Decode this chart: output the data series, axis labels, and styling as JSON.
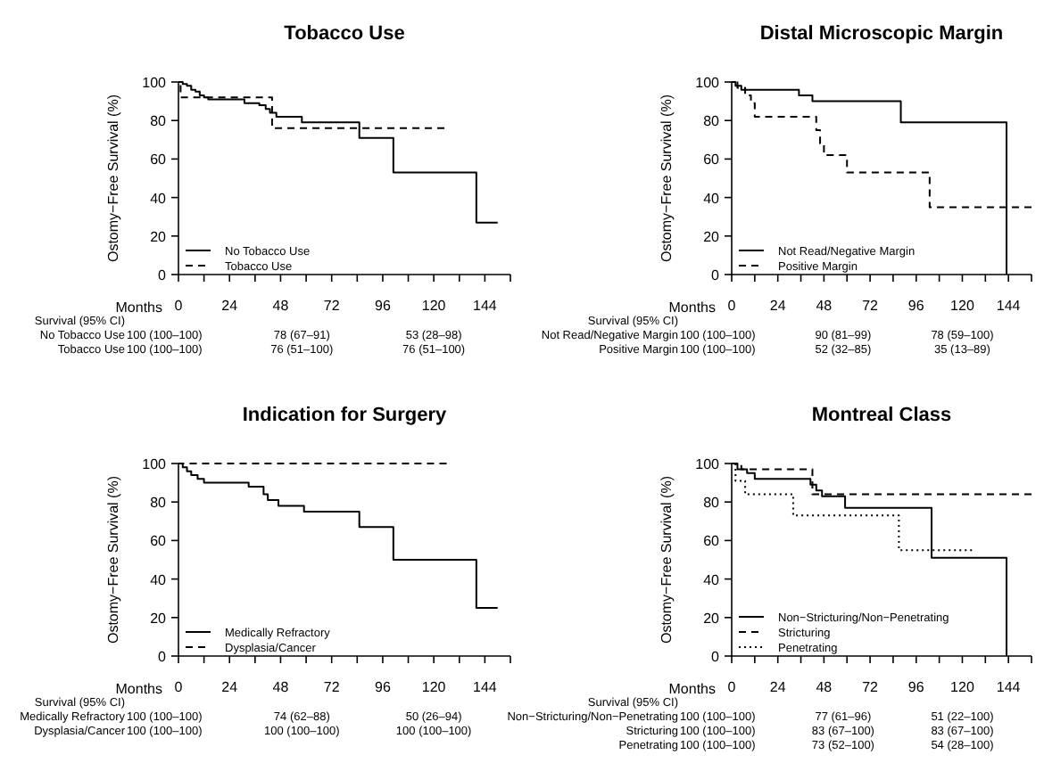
{
  "chart_data": [
    {
      "type": "step",
      "title": "Tobacco Use",
      "xlabel": "Months",
      "ylabel": "Ostomy−Free Survival (%)",
      "xlim": [
        0,
        156
      ],
      "xticks": [
        0,
        {
          "value": 12,
          "label": null
        },
        24,
        {
          "value": 36,
          "label": null
        },
        48,
        {
          "value": 60,
          "label": null
        },
        72,
        {
          "value": 84,
          "label": null
        },
        96,
        {
          "value": 108,
          "label": null
        },
        120,
        {
          "value": 132,
          "label": null
        },
        144,
        {
          "value": 156,
          "label": null
        }
      ],
      "ylim": [
        0,
        100
      ],
      "yticks": [
        0,
        20,
        40,
        60,
        80,
        100
      ],
      "legend": "bottom left",
      "series": [
        {
          "name": "No Tobacco Use",
          "color": "#000000",
          "line_style": "solid",
          "x": [
            0,
            2,
            4,
            6,
            8,
            10,
            12,
            14,
            31,
            38,
            41,
            43,
            46,
            58,
            85,
            101,
            140,
            150
          ],
          "values": [
            100,
            99,
            98,
            96,
            95,
            93,
            92,
            91,
            89,
            88,
            86,
            84,
            82,
            79,
            71,
            53,
            27,
            27
          ]
        },
        {
          "name": "Tobacco Use",
          "color": "#000000",
          "line_style": "dashed",
          "x": [
            0,
            1,
            44,
            125
          ],
          "values": [
            100,
            92,
            76,
            76
          ]
        }
      ],
      "annotations": [
        "Survival (95% CI)",
        "No Tobacco Use",
        "100 (100–100)",
        "78 (67–91)",
        "53 (28–98)",
        "Tobacco Use",
        "100 (100–100)",
        "76 (51–100)",
        "76 (51–100)"
      ]
    },
    {
      "type": "step",
      "title": "Distal Microscopic Margin",
      "xlabel": "Months",
      "ylabel": "Ostomy−Free Survival (%)",
      "xlim": [
        0,
        156
      ],
      "xticks": [
        0,
        {
          "value": 12,
          "label": null
        },
        24,
        {
          "value": 36,
          "label": null
        },
        48,
        {
          "value": 60,
          "label": null
        },
        72,
        {
          "value": 84,
          "label": null
        },
        96,
        {
          "value": 108,
          "label": null
        },
        120,
        {
          "value": 132,
          "label": null
        },
        144,
        {
          "value": 156,
          "label": null
        }
      ],
      "ylim": [
        0,
        100
      ],
      "yticks": [
        0,
        20,
        40,
        60,
        80,
        100
      ],
      "legend": "bottom left",
      "series": [
        {
          "name": "Not Read/Negative Margin",
          "color": "#000000",
          "line_style": "solid",
          "x": [
            0,
            2,
            5,
            35,
            42,
            88,
            143
          ],
          "values": [
            100,
            98,
            96,
            93,
            90,
            79,
            0
          ]
        },
        {
          "name": "Positive Margin",
          "color": "#000000",
          "line_style": "dashed",
          "x": [
            0,
            3,
            7,
            10,
            12,
            44,
            46,
            48,
            60,
            103,
            156
          ],
          "values": [
            100,
            97,
            93,
            89,
            82,
            75,
            68,
            62,
            53,
            35,
            35
          ]
        }
      ],
      "annotations": [
        "Survival (95% CI)",
        "Not Read/Negative Margin",
        "100 (100–100)",
        "90 (81–99)",
        "78 (59–100)",
        "Positive Margin",
        "100 (100–100)",
        "52 (32–85)",
        "35 (13–89)"
      ]
    },
    {
      "type": "step",
      "title": "Indication for Surgery",
      "xlabel": "Months",
      "ylabel": "Ostomy−Free Survival (%)",
      "xlim": [
        0,
        156
      ],
      "xticks": [
        0,
        {
          "value": 12,
          "label": null
        },
        24,
        {
          "value": 36,
          "label": null
        },
        48,
        {
          "value": 60,
          "label": null
        },
        72,
        {
          "value": 84,
          "label": null
        },
        96,
        {
          "value": 108,
          "label": null
        },
        120,
        {
          "value": 132,
          "label": null
        },
        144,
        {
          "value": 156,
          "label": null
        }
      ],
      "ylim": [
        0,
        100
      ],
      "yticks": [
        0,
        20,
        40,
        60,
        80,
        100
      ],
      "legend": "bottom left",
      "series": [
        {
          "name": "Medically Refractory",
          "color": "#000000",
          "line_style": "solid",
          "x": [
            0,
            2,
            4,
            6,
            9,
            12,
            33,
            40,
            42,
            47,
            59,
            85,
            101,
            140,
            150
          ],
          "values": [
            100,
            98,
            96,
            94,
            92,
            90,
            88,
            84,
            81,
            78,
            75,
            67,
            50,
            25,
            25
          ]
        },
        {
          "name": "Dysplasia/Cancer",
          "color": "#000000",
          "line_style": "dashed",
          "x": [
            0,
            126
          ],
          "values": [
            100,
            100
          ]
        }
      ],
      "annotations": [
        "Survival (95% CI)",
        "Medically Refractory",
        "100 (100–100)",
        "74 (62–88)",
        "50 (26–94)",
        "Dysplasia/Cancer",
        "100 (100–100)",
        "100 (100–100)",
        "100 (100–100)"
      ]
    },
    {
      "type": "step",
      "title": "Montreal Class",
      "xlabel": "Months",
      "ylabel": "Ostomy−Free Survival (%)",
      "xlim": [
        0,
        156
      ],
      "xticks": [
        0,
        {
          "value": 12,
          "label": null
        },
        24,
        {
          "value": 36,
          "label": null
        },
        48,
        {
          "value": 60,
          "label": null
        },
        72,
        {
          "value": 84,
          "label": null
        },
        96,
        {
          "value": 108,
          "label": null
        },
        120,
        {
          "value": 132,
          "label": null
        },
        144,
        {
          "value": 156,
          "label": null
        }
      ],
      "ylim": [
        0,
        100
      ],
      "yticks": [
        0,
        20,
        40,
        60,
        80,
        100
      ],
      "legend": "bottom left",
      "series": [
        {
          "name": "Non−Stricturing/Non−Penetrating",
          "color": "#000000",
          "line_style": "solid",
          "x": [
            0,
            3,
            8,
            12,
            41,
            44,
            47,
            59,
            104,
            143
          ],
          "values": [
            100,
            97,
            95,
            92,
            89,
            86,
            83,
            77,
            51,
            0
          ]
        },
        {
          "name": "Stricturing",
          "color": "#000000",
          "line_style": "dashed",
          "x": [
            0,
            5,
            42,
            156
          ],
          "values": [
            100,
            97,
            84,
            84
          ]
        },
        {
          "name": "Penetrating",
          "color": "#000000",
          "line_style": "dotted",
          "x": [
            0,
            2,
            7,
            32,
            87,
            125
          ],
          "values": [
            100,
            91,
            84,
            73,
            55,
            55
          ]
        }
      ],
      "annotations": [
        "Survival (95% CI)",
        "Non−Stricturing/Non−Penetrating",
        "100 (100–100)",
        "77 (61–96)",
        "51 (22–100)",
        "Stricturing",
        "100 (100–100)",
        "83 (67–100)",
        "83 (67–100)",
        "Penetrating",
        "100 (100–100)",
        "73 (52–100)",
        "54 (28–100)"
      ]
    }
  ]
}
